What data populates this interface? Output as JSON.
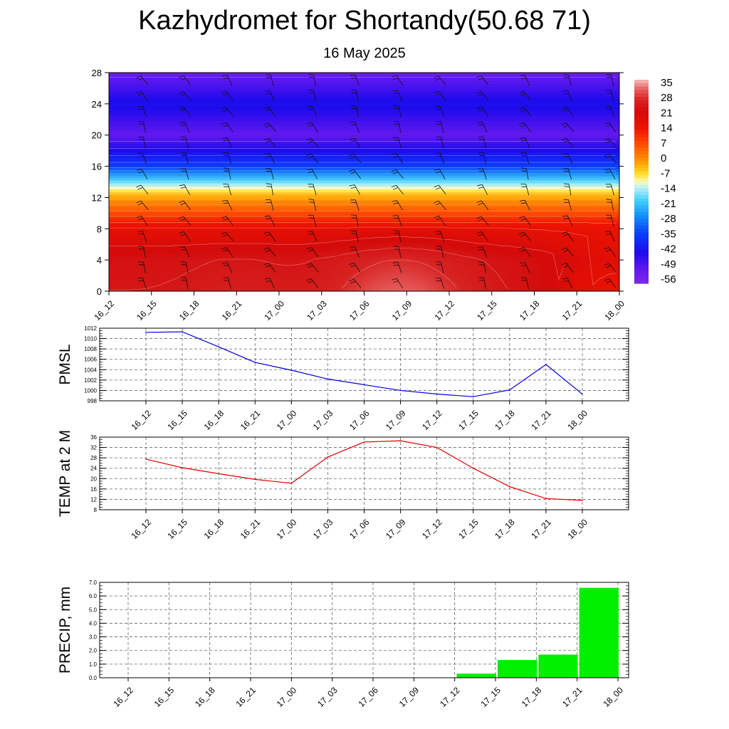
{
  "title": "Kazhydromet for Shortandy(50.68 71)",
  "date": "16 May 2025",
  "colors": {
    "pmsl_line": "#0000dd",
    "temp_line": "#dd0000",
    "precip_bar": "#00ee00"
  },
  "chart_data": [
    {
      "type": "heatmap",
      "name": "cross-section",
      "x": [
        "16_12",
        "16_15",
        "16_18",
        "16_21",
        "17_00",
        "17_03",
        "17_06",
        "17_09",
        "17_12",
        "17_15",
        "17_18",
        "17_21",
        "18_00"
      ],
      "yticks": [
        0,
        4,
        8,
        12,
        16,
        20,
        24,
        28
      ],
      "ylim": [
        0,
        28
      ],
      "colorbar_labels": [
        "35",
        "28",
        "21",
        "14",
        "7",
        "0",
        "-7",
        "-14",
        "-21",
        "-28",
        "-35",
        "-42",
        "-49",
        "-56"
      ],
      "colorbar_range": [
        -63,
        42
      ],
      "description_levels": {
        "surface_warm_center_x": "17_07",
        "cold_core_level": 20
      }
    },
    {
      "type": "line",
      "ylabel": "PMSL",
      "categories": [
        "16_12",
        "16_15",
        "16_18",
        "16_21",
        "17_00",
        "17_03",
        "17_06",
        "17_09",
        "17_12",
        "17_15",
        "17_18",
        "17_21",
        "18_00"
      ],
      "values": [
        1011.2,
        1011.3,
        1008.4,
        1005.4,
        1003.9,
        1002.2,
        1001.1,
        1000.0,
        999.3,
        998.8,
        1000.1,
        1005.0,
        999.3
      ],
      "ylim": [
        998,
        1012
      ],
      "yticks": [
        998,
        1000,
        1002,
        1004,
        1006,
        1008,
        1010,
        1012
      ]
    },
    {
      "type": "line",
      "ylabel": "TEMP at 2 M",
      "categories": [
        "16_12",
        "16_15",
        "16_18",
        "16_21",
        "17_00",
        "17_03",
        "17_06",
        "17_09",
        "17_12",
        "17_15",
        "17_18",
        "17_21",
        "18_00"
      ],
      "values": [
        27.5,
        24.2,
        21.9,
        19.7,
        18.2,
        28.3,
        34.1,
        34.6,
        32.0,
        24.0,
        16.9,
        12.3,
        11.6
      ],
      "ylim": [
        8,
        36
      ],
      "yticks": [
        8,
        12,
        16,
        20,
        24,
        28,
        32,
        36
      ]
    },
    {
      "type": "bar",
      "ylabel": "PRECIP, mm",
      "categories": [
        "16_12",
        "16_15",
        "16_18",
        "16_21",
        "17_00",
        "17_03",
        "17_06",
        "17_09",
        "17_12",
        "17_15",
        "17_18",
        "17_21",
        "18_00"
      ],
      "values": [
        0,
        0,
        0,
        0,
        0,
        0,
        0,
        0,
        0,
        0.3,
        1.3,
        1.7,
        6.6
      ],
      "ylim": [
        0,
        7
      ],
      "yticks": [
        "0.0",
        "1.0",
        "2.0",
        "3.0",
        "4.0",
        "5.0",
        "6.0",
        "7.0"
      ]
    }
  ]
}
